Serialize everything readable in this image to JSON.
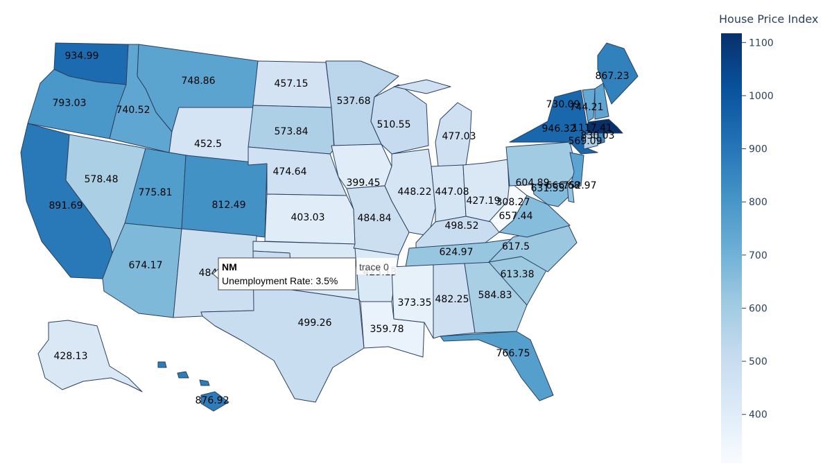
{
  "colorbar": {
    "title": "House Price Index",
    "min": 308.27,
    "max": 1117.41,
    "ticks": [
      400,
      500,
      600,
      700,
      800,
      900,
      1000,
      1100
    ],
    "colorscale": [
      "#f7fbff",
      "#deebf7",
      "#c6dbef",
      "#9ecae1",
      "#6baed6",
      "#4292c6",
      "#2171b5",
      "#08519c",
      "#08306b"
    ]
  },
  "tooltip": {
    "state": "NM",
    "text": "Unemployment Rate: 3.5%",
    "trace": "trace 0"
  },
  "states": [
    {
      "id": "WA",
      "value": 934.99,
      "label": "934.99"
    },
    {
      "id": "OR",
      "value": 793.03,
      "label": "793.03"
    },
    {
      "id": "CA",
      "value": 891.69,
      "label": "891.69"
    },
    {
      "id": "ID",
      "value": 740.52,
      "label": "740.52"
    },
    {
      "id": "NV",
      "value": 578.48,
      "label": "578.48"
    },
    {
      "id": "MT",
      "value": 748.86,
      "label": "748.86"
    },
    {
      "id": "WY",
      "value": 452.5,
      "label": "452.5"
    },
    {
      "id": "UT",
      "value": 775.81,
      "label": "775.81"
    },
    {
      "id": "CO",
      "value": 812.49,
      "label": "812.49"
    },
    {
      "id": "AZ",
      "value": 674.17,
      "label": "674.17"
    },
    {
      "id": "NM",
      "value": 484.0,
      "label": "484"
    },
    {
      "id": "ND",
      "value": 457.15,
      "label": "457.15"
    },
    {
      "id": "SD",
      "value": 573.84,
      "label": "573.84"
    },
    {
      "id": "NE",
      "value": 474.64,
      "label": "474.64"
    },
    {
      "id": "KS",
      "value": 403.03,
      "label": "403.03"
    },
    {
      "id": "OK",
      "value": 425.13,
      "label": "425.13"
    },
    {
      "id": "TX",
      "value": 499.26,
      "label": "499.26"
    },
    {
      "id": "MN",
      "value": 537.68,
      "label": "537.68"
    },
    {
      "id": "IA",
      "value": 399.45,
      "label": "399.45"
    },
    {
      "id": "MO",
      "value": 484.84,
      "label": "484.84"
    },
    {
      "id": "AR",
      "value": 425.13,
      "label": ""
    },
    {
      "id": "LA",
      "value": 359.78,
      "label": "359.78"
    },
    {
      "id": "WI",
      "value": 510.55,
      "label": "510.55"
    },
    {
      "id": "IL",
      "value": 448.22,
      "label": "448.22"
    },
    {
      "id": "MI",
      "value": 477.03,
      "label": "477.03"
    },
    {
      "id": "IN",
      "value": 447.08,
      "label": "447.08"
    },
    {
      "id": "OH",
      "value": 427.19,
      "label": "427.19"
    },
    {
      "id": "KY",
      "value": 498.52,
      "label": "498.52"
    },
    {
      "id": "TN",
      "value": 624.97,
      "label": "624.97"
    },
    {
      "id": "MS",
      "value": 373.35,
      "label": "373.35"
    },
    {
      "id": "AL",
      "value": 482.25,
      "label": "482.25"
    },
    {
      "id": "GA",
      "value": 584.83,
      "label": "584.83"
    },
    {
      "id": "FL",
      "value": 766.75,
      "label": "766.75"
    },
    {
      "id": "SC",
      "value": 613.38,
      "label": "613.38"
    },
    {
      "id": "NC",
      "value": 617.5,
      "label": "617.5"
    },
    {
      "id": "VA",
      "value": 657.44,
      "label": "657.44"
    },
    {
      "id": "WV",
      "value": 308.27,
      "label": "308.27"
    },
    {
      "id": "PA",
      "value": 604.89,
      "label": "604.89"
    },
    {
      "id": "NY",
      "value": 946.32,
      "label": "946.32"
    },
    {
      "id": "NJ",
      "value": 752.97,
      "label": "752.97"
    },
    {
      "id": "MD",
      "value": 666.68,
      "label": "666.68"
    },
    {
      "id": "DE",
      "value": 631.55,
      "label": "631.55"
    },
    {
      "id": "VT",
      "value": 730.09,
      "label": "730.09"
    },
    {
      "id": "NH",
      "value": 744.21,
      "label": "744.21"
    },
    {
      "id": "ME",
      "value": 867.23,
      "label": "867.23"
    },
    {
      "id": "MA",
      "value": 1117.41,
      "label": "1117.41"
    },
    {
      "id": "CT",
      "value": 569.09,
      "label": "569.09"
    },
    {
      "id": "RI",
      "value": 830.03,
      "label": "830.03"
    },
    {
      "id": "AK",
      "value": 428.13,
      "label": "428.13"
    },
    {
      "id": "HI",
      "value": 876.92,
      "label": "876.92"
    }
  ]
}
